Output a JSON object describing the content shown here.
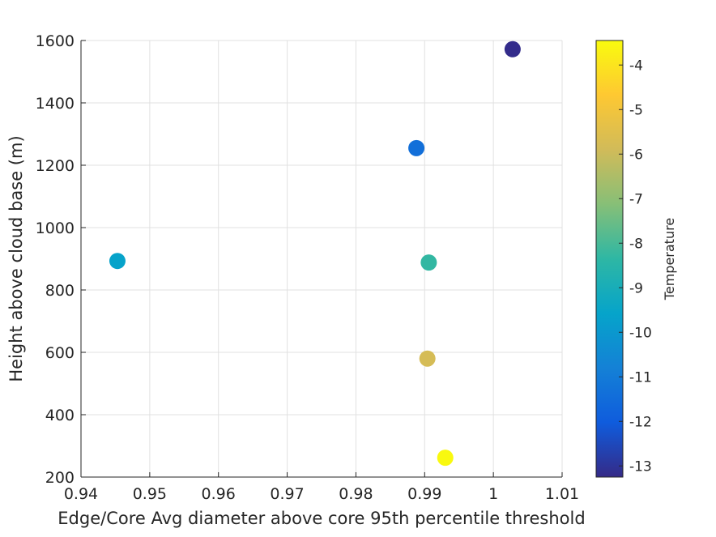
{
  "chart_data": {
    "type": "scatter",
    "title": "",
    "xlabel": "Edge/Core Avg diameter above core 95th percentile threshold",
    "ylabel": "Height above cloud base (m)",
    "xlim": [
      0.94,
      1.01
    ],
    "ylim": [
      200,
      1600
    ],
    "xticks": [
      "0.94",
      "0.95",
      "0.96",
      "0.97",
      "0.98",
      "0.99",
      "1",
      "1.01"
    ],
    "yticks": [
      "200",
      "400",
      "600",
      "800",
      "1000",
      "1200",
      "1400",
      "1600"
    ],
    "grid": true,
    "points": [
      {
        "x": 0.9453,
        "y": 893,
        "temperature": -9.6
      },
      {
        "x": 0.9888,
        "y": 1255,
        "temperature": -11.4
      },
      {
        "x": 0.9906,
        "y": 888,
        "temperature": -8.3
      },
      {
        "x": 0.9904,
        "y": 580,
        "temperature": -5.8
      },
      {
        "x": 0.993,
        "y": 262,
        "temperature": -3.5
      },
      {
        "x": 1.0028,
        "y": 1572,
        "temperature": -13.2
      }
    ],
    "colorbar": {
      "label": "Temperature",
      "range": [
        -13.25,
        -3.45
      ],
      "ticks": [
        "-4",
        "-5",
        "-6",
        "-7",
        "-8",
        "-9",
        "-10",
        "-11",
        "-12",
        "-13"
      ],
      "colormap": "parula",
      "colormap_stops": [
        "#352a87",
        "#0f5cdd",
        "#1481d6",
        "#06a4ca",
        "#2eb7a4",
        "#87bf77",
        "#d1bb59",
        "#fec832",
        "#f9fb0e"
      ]
    }
  }
}
